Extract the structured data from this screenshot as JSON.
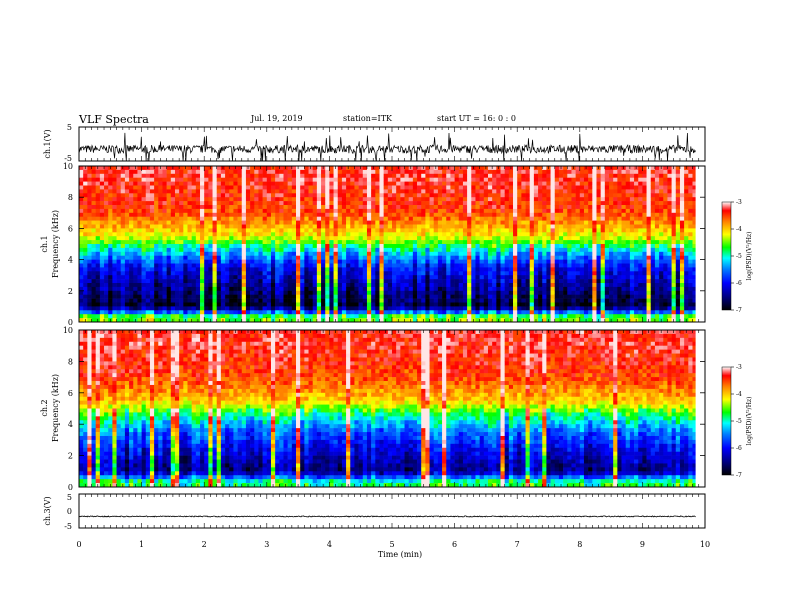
{
  "header": {
    "title": "VLF Spectra",
    "date": "Jul. 19, 2019",
    "station": "station=ITK",
    "start_time": "start UT =  16: 0 : 0"
  },
  "axes": {
    "xlabel": "Time (min)",
    "ch1_wave_label": "ch.1(V)",
    "ch1_spec_label": "ch.1",
    "ch2_spec_label": "ch.2",
    "freq_label": "Frequency (kHz)",
    "ch3_wave_label": "ch.3(V)",
    "colorbar_label": "log(PSD)(V²/Hz)"
  },
  "chart_data": [
    {
      "id": "ch1-waveform",
      "type": "line",
      "ylabel": "ch.1(V)",
      "ylim": [
        -5,
        5
      ],
      "yticks": [
        "5",
        "-5"
      ],
      "xlim": [
        0,
        10
      ],
      "description_values": {
        "baseline": -1.5,
        "noise_amplitude": 1.2,
        "end_time_min": 9.85
      }
    },
    {
      "id": "ch1-spectrogram",
      "type": "heatmap",
      "ylabel": "ch.1 Frequency (kHz)",
      "ylim": [
        0,
        10
      ],
      "yticks": [
        "0",
        "2",
        "4",
        "6",
        "8",
        "10"
      ],
      "xlim": [
        0,
        10
      ],
      "color_range": [
        -7,
        -3
      ],
      "colorbar_ticks": [
        "-3",
        "-4",
        "-5",
        "-6",
        "-7"
      ],
      "colorbar_label": "log(PSD)(V²/Hz)",
      "levels_by_frequency_khz": [
        {
          "f": 0.3,
          "log_psd": -4.5
        },
        {
          "f": 1,
          "log_psd": -6.8
        },
        {
          "f": 2,
          "log_psd": -6.5
        },
        {
          "f": 3.5,
          "log_psd": -6.0
        },
        {
          "f": 4.5,
          "log_psd": -5.2
        },
        {
          "f": 5.5,
          "log_psd": -4.2
        },
        {
          "f": 7,
          "log_psd": -3.5
        },
        {
          "f": 9,
          "log_psd": -3.3
        }
      ]
    },
    {
      "id": "ch2-spectrogram",
      "type": "heatmap",
      "ylabel": "ch.2 Frequency (kHz)",
      "ylim": [
        0,
        10
      ],
      "yticks": [
        "0",
        "2",
        "4",
        "6",
        "8",
        "10"
      ],
      "xlim": [
        0,
        10
      ],
      "color_range": [
        -7,
        -3
      ],
      "colorbar_ticks": [
        "-3",
        "-4",
        "-5",
        "-6",
        "-7"
      ],
      "colorbar_label": "log(PSD)(V²/Hz)",
      "levels_by_frequency_khz": [
        {
          "f": 0.3,
          "log_psd": -4.8
        },
        {
          "f": 1,
          "log_psd": -6.5
        },
        {
          "f": 2,
          "log_psd": -6.2
        },
        {
          "f": 3.5,
          "log_psd": -5.6
        },
        {
          "f": 4.5,
          "log_psd": -4.9
        },
        {
          "f": 5.5,
          "log_psd": -4.0
        },
        {
          "f": 7,
          "log_psd": -3.5
        },
        {
          "f": 9,
          "log_psd": -3.3
        }
      ]
    },
    {
      "id": "ch3-waveform",
      "type": "line",
      "ylabel": "ch.3(V)",
      "ylim": [
        -5,
        5
      ],
      "yticks": [
        "5",
        "0",
        "-5"
      ],
      "xlim": [
        0,
        10
      ],
      "description_values": {
        "baseline": -1.6,
        "noise_amplitude": 0.15,
        "end_time_min": 9.85
      }
    }
  ],
  "x_axis": {
    "ticks": [
      "0",
      "1",
      "2",
      "3",
      "4",
      "5",
      "6",
      "7",
      "8",
      "9",
      "10"
    ],
    "xlim": [
      0,
      10
    ]
  },
  "colors": {
    "frame": "#000000",
    "background": "#ffffff"
  }
}
